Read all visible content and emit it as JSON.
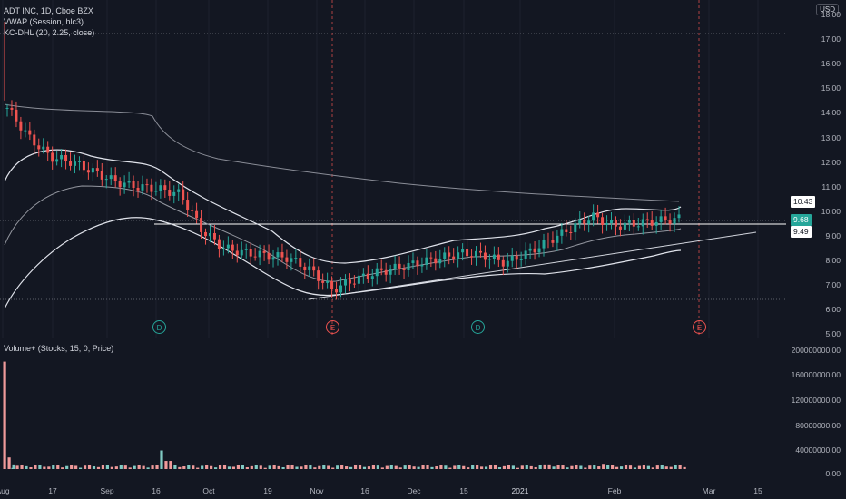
{
  "symbol_line": "ADT INC, 1D, Cboe BZX",
  "vwap_line": "VWAP (Session, hlc3)",
  "kc_line": "KC-DHL (20, 2.25, close)",
  "volume_line": "Volume+ (Stocks, 15, 0, Price)",
  "currency": "USD",
  "price_axis": [
    "18.00",
    "17.00",
    "16.00",
    "15.00",
    "14.00",
    "13.00",
    "12.00",
    "11.00",
    "10.00",
    "9.00",
    "8.00",
    "7.00",
    "6.00",
    "5.00"
  ],
  "volume_axis": [
    "200000000.00",
    "160000000.00",
    "120000000.00",
    "80000000.00",
    "40000000.00",
    "0.00"
  ],
  "time_axis": [
    "Aug",
    "17",
    "Sep",
    "16",
    "Oct",
    "19",
    "Nov",
    "16",
    "Dec",
    "15",
    "2021",
    "Feb",
    "Mar",
    "15"
  ],
  "price_tags": {
    "upper": "10.43",
    "last": "9.68",
    "lower": "9.49"
  },
  "events": [
    "D",
    "E",
    "D",
    "E"
  ],
  "colors": {
    "up": "#26a69a",
    "down": "#ef5350",
    "last_tag": "#26a69a",
    "background": "#131722"
  },
  "chart_data": {
    "type": "candlestick",
    "title": "ADT INC, 1D, Cboe BZX",
    "ylim": [
      5,
      18
    ],
    "close_series": {
      "x": [
        "Aug",
        "17",
        "Sep",
        "16",
        "Oct",
        "19",
        "Nov",
        "16",
        "Dec",
        "15",
        "2021",
        "Feb"
      ],
      "values": [
        14.2,
        12.0,
        11.2,
        10.9,
        8.5,
        8.1,
        6.8,
        7.5,
        7.9,
        8.1,
        7.9,
        9.2
      ]
    },
    "last_price": 9.68,
    "volume_ylim": [
      0,
      200000000
    ]
  }
}
